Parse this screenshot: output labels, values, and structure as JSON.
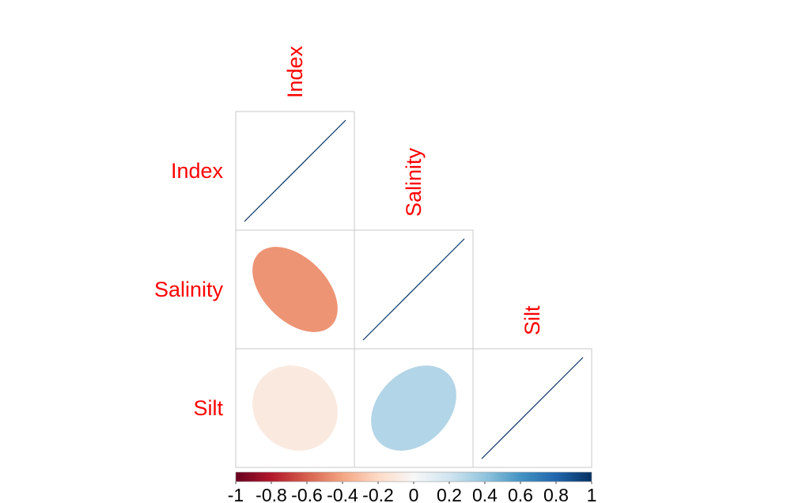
{
  "chart_data": {
    "type": "heatmap",
    "variables": [
      "Index",
      "Salinity",
      "Silt"
    ],
    "lower_triangle": [
      {
        "row": "Index",
        "col": "Index",
        "value": 1.0
      },
      {
        "row": "Salinity",
        "col": "Index",
        "value": -0.45
      },
      {
        "row": "Salinity",
        "col": "Salinity",
        "value": 1.0
      },
      {
        "row": "Silt",
        "col": "Index",
        "value": -0.1
      },
      {
        "row": "Silt",
        "col": "Salinity",
        "value": 0.3
      },
      {
        "row": "Silt",
        "col": "Silt",
        "value": 1.0
      }
    ],
    "colorbar": {
      "range": [
        -1,
        1
      ],
      "tick_labels": [
        "-1",
        "-0.8",
        "-0.6",
        "-0.4",
        "-0.2",
        "0",
        "0.2",
        "0.4",
        "0.6",
        "0.8",
        "1"
      ],
      "colors": [
        "#67001f",
        "#b2182b",
        "#d6604d",
        "#f4a582",
        "#fddbc7",
        "#f7f7f7",
        "#d1e5f0",
        "#92c5de",
        "#4393c3",
        "#2166ac",
        "#053061"
      ]
    },
    "label_color": "#ff0000",
    "title": "",
    "xlabel": "",
    "ylabel": ""
  }
}
